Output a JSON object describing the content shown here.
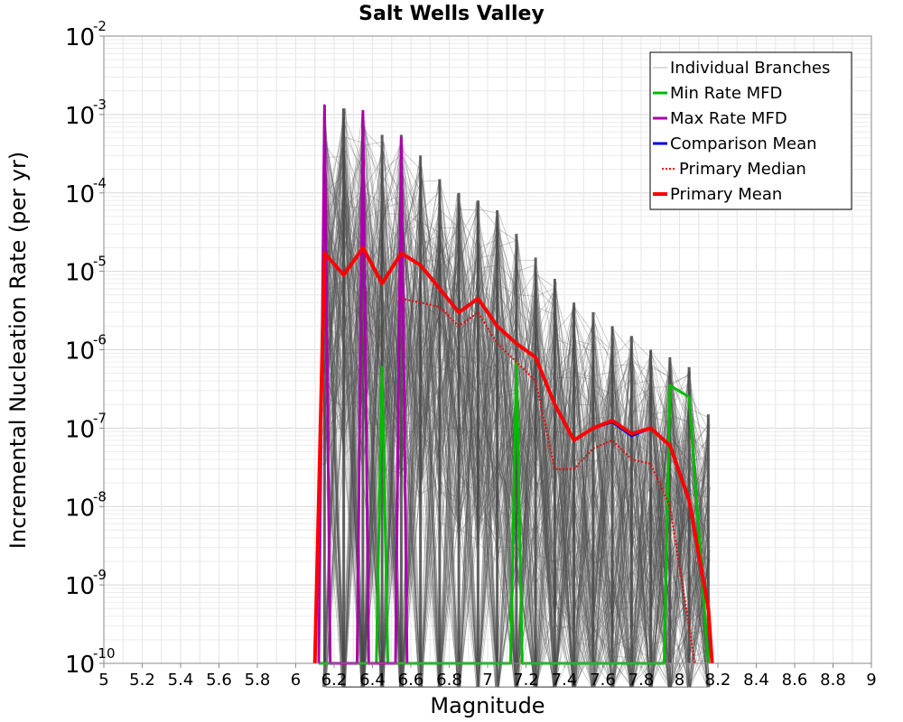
{
  "chart_data": {
    "type": "line",
    "title": "Salt Wells Valley",
    "xlabel": "Magnitude",
    "ylabel": "Incremental Nucleation Rate (per yr)",
    "xlim": [
      5,
      9
    ],
    "ylim": [
      1e-10,
      0.01
    ],
    "y_scale": "log",
    "x_ticks": [
      "5",
      "5.2",
      "5.4",
      "5.6",
      "5.8",
      "6",
      "6.2",
      "6.4",
      "6.6",
      "6.8",
      "7",
      "7.2",
      "7.4",
      "7.6",
      "7.8",
      "8",
      "8.2",
      "8.4",
      "8.6",
      "8.8",
      "9"
    ],
    "y_ticks": [
      {
        "base": "10",
        "exp": "-10"
      },
      {
        "base": "10",
        "exp": "-9"
      },
      {
        "base": "10",
        "exp": "-8"
      },
      {
        "base": "10",
        "exp": "-7"
      },
      {
        "base": "10",
        "exp": "-6"
      },
      {
        "base": "10",
        "exp": "-5"
      },
      {
        "base": "10",
        "exp": "-4"
      },
      {
        "base": "10",
        "exp": "-3"
      },
      {
        "base": "10",
        "exp": "-2"
      }
    ],
    "grid": true,
    "legend_position": "top-right",
    "legend": [
      "Individual Branches",
      "Min Rate MFD",
      "Max Rate MFD",
      "Comparison Mean",
      "Primary Median",
      "Primary Mean"
    ],
    "series": [
      {
        "name": "Min Rate MFD",
        "color": "#00bb00",
        "style": "solid",
        "x": [
          6.12,
          6.15,
          6.18,
          6.22,
          6.25,
          6.28,
          6.32,
          6.35,
          6.38,
          6.42,
          6.45,
          6.48,
          6.52,
          6.55,
          6.58,
          7.12,
          7.15,
          7.18,
          7.92,
          7.95,
          8.05,
          8.15
        ],
        "values": [
          1e-10,
          1e-10,
          1e-10,
          1e-10,
          1e-10,
          1e-10,
          1e-10,
          1e-10,
          1e-10,
          1e-10,
          6e-07,
          1e-10,
          1e-10,
          1e-10,
          1e-10,
          1e-10,
          7e-07,
          1e-10,
          1e-10,
          3.5e-07,
          2.5e-07,
          1e-10
        ]
      },
      {
        "name": "Max Rate MFD",
        "color": "#aa00aa",
        "style": "solid",
        "x": [
          6.12,
          6.15,
          6.18,
          6.32,
          6.35,
          6.38,
          6.52,
          6.55,
          6.58
        ],
        "values": [
          1e-10,
          0.0013,
          1e-10,
          1e-10,
          0.0011,
          1e-10,
          1e-10,
          0.0005,
          1e-10
        ]
      },
      {
        "name": "Comparison Mean",
        "color": "#0000dd",
        "style": "solid",
        "x": [
          6.1,
          6.15,
          6.25,
          6.35,
          6.45,
          6.55,
          6.65,
          6.75,
          6.85,
          6.95,
          7.05,
          7.15,
          7.25,
          7.35,
          7.45,
          7.55,
          7.65,
          7.75,
          7.85,
          7.95,
          8.05,
          8.15,
          8.17
        ],
        "values": [
          1e-10,
          1.7e-05,
          9e-06,
          2e-05,
          7e-06,
          1.7e-05,
          1.2e-05,
          6e-06,
          3e-06,
          4.5e-06,
          2e-06,
          1.2e-06,
          8e-07,
          2e-07,
          7e-08,
          1e-07,
          1.2e-07,
          8e-08,
          1e-07,
          6e-08,
          1.2e-08,
          5e-10,
          1e-10
        ]
      },
      {
        "name": "Primary Median",
        "color": "#ee0000",
        "style": "dotted",
        "x": [
          6.55,
          6.65,
          6.75,
          6.85,
          6.95,
          7.05,
          7.15,
          7.25,
          7.35,
          7.45,
          7.55,
          7.65,
          7.75,
          7.85,
          7.95,
          8.05,
          8.08
        ],
        "values": [
          4.5e-06,
          4e-06,
          3.5e-06,
          2e-06,
          3e-06,
          1.2e-06,
          7e-07,
          4e-07,
          3e-08,
          3e-08,
          5.5e-08,
          7e-08,
          4e-08,
          3.5e-08,
          1e-08,
          3e-10,
          1e-10
        ]
      },
      {
        "name": "Primary Mean",
        "color": "#ff0000",
        "style": "solid",
        "x": [
          6.1,
          6.15,
          6.25,
          6.35,
          6.45,
          6.55,
          6.65,
          6.75,
          6.85,
          6.95,
          7.05,
          7.15,
          7.25,
          7.35,
          7.45,
          7.55,
          7.65,
          7.75,
          7.85,
          7.95,
          8.05,
          8.15,
          8.17
        ],
        "values": [
          1e-10,
          1.7e-05,
          9e-06,
          2e-05,
          7e-06,
          1.7e-05,
          1.2e-05,
          6e-06,
          3e-06,
          4.5e-06,
          2e-06,
          1.2e-06,
          8e-07,
          2e-07,
          7e-08,
          1e-07,
          1.25e-07,
          8.5e-08,
          1e-07,
          6e-08,
          1.2e-08,
          5e-10,
          1e-10
        ]
      }
    ],
    "branch_band": {
      "name": "Individual Branches",
      "color": "#505050",
      "peaks": [
        {
          "x": 6.15,
          "upper": 0.001
        },
        {
          "x": 6.25,
          "upper": 0.0012
        },
        {
          "x": 6.35,
          "upper": 0.001
        },
        {
          "x": 6.45,
          "upper": 0.00055
        },
        {
          "x": 6.55,
          "upper": 0.00055
        },
        {
          "x": 6.65,
          "upper": 0.0003
        },
        {
          "x": 6.75,
          "upper": 0.00015
        },
        {
          "x": 6.85,
          "upper": 0.0001
        },
        {
          "x": 6.95,
          "upper": 8e-05
        },
        {
          "x": 7.05,
          "upper": 6e-05
        },
        {
          "x": 7.15,
          "upper": 3e-05
        },
        {
          "x": 7.25,
          "upper": 1.5e-05
        },
        {
          "x": 7.35,
          "upper": 8e-06
        },
        {
          "x": 7.45,
          "upper": 4e-06
        },
        {
          "x": 7.55,
          "upper": 3e-06
        },
        {
          "x": 7.65,
          "upper": 2e-06
        },
        {
          "x": 7.75,
          "upper": 1.5e-06
        },
        {
          "x": 7.85,
          "upper": 1e-06
        },
        {
          "x": 7.95,
          "upper": 8e-07
        },
        {
          "x": 8.05,
          "upper": 6e-07
        },
        {
          "x": 8.15,
          "upper": 1.5e-07
        }
      ]
    }
  }
}
